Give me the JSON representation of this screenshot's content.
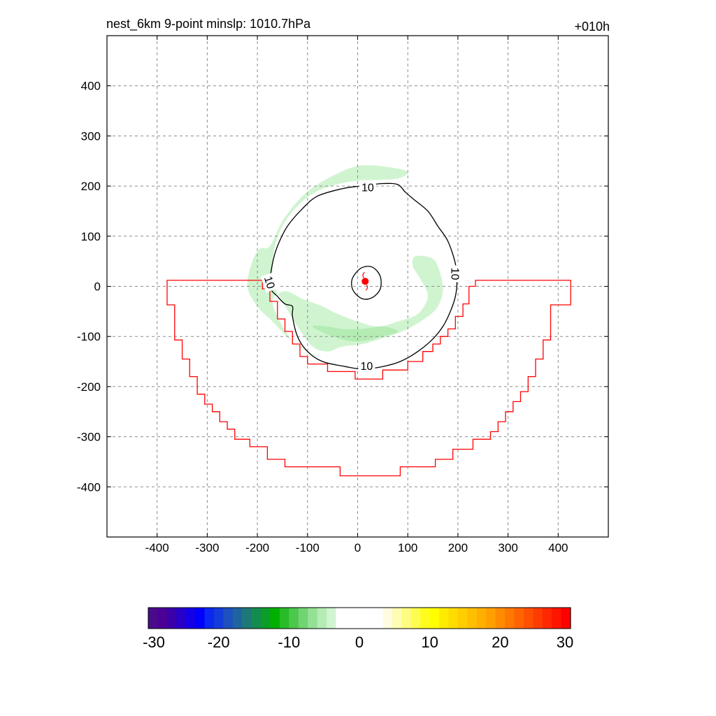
{
  "header": {
    "title": "nest_6km  9-point minslp: 1010.7hPa",
    "forecast_hour": "+010h"
  },
  "chart_data": {
    "type": "contour",
    "x_range": [
      -500,
      500
    ],
    "y_range": [
      -500,
      500
    ],
    "x_ticks": [
      -400,
      -300,
      -200,
      -100,
      0,
      100,
      200,
      300,
      400
    ],
    "y_ticks": [
      400,
      300,
      200,
      100,
      0,
      -100,
      -200,
      -300,
      -400
    ],
    "grid": true,
    "storm_center": {
      "x": 15,
      "y": 10,
      "color": "#ff0000"
    },
    "contour_label": "10",
    "contour_labels": [
      {
        "text": "10",
        "x": 20,
        "y": 198,
        "rotate": 0
      },
      {
        "text": "10",
        "x": 195,
        "y": 25,
        "rotate": 90
      },
      {
        "text": "10",
        "x": 18,
        "y": -158,
        "rotate": 0
      },
      {
        "text": "10",
        "x": -175,
        "y": 8,
        "rotate": 72
      }
    ],
    "contour_outer": [
      [
        -170,
        45
      ],
      [
        -160,
        80
      ],
      [
        -140,
        120
      ],
      [
        -110,
        155
      ],
      [
        -80,
        180
      ],
      [
        -30,
        195
      ],
      [
        5,
        200
      ],
      [
        50,
        205
      ],
      [
        80,
        203
      ],
      [
        95,
        188
      ],
      [
        110,
        175
      ],
      [
        140,
        150
      ],
      [
        160,
        120
      ],
      [
        180,
        90
      ],
      [
        195,
        45
      ],
      [
        198,
        10
      ],
      [
        195,
        -20
      ],
      [
        185,
        -50
      ],
      [
        170,
        -80
      ],
      [
        150,
        -105
      ],
      [
        120,
        -130
      ],
      [
        85,
        -150
      ],
      [
        50,
        -160
      ],
      [
        10,
        -165
      ],
      [
        -25,
        -160
      ],
      [
        -70,
        -150
      ],
      [
        -100,
        -130
      ],
      [
        -120,
        -100
      ],
      [
        -130,
        -60
      ],
      [
        -130,
        -40
      ],
      [
        -145,
        -35
      ],
      [
        -160,
        -20
      ],
      [
        -175,
        0
      ]
    ],
    "contour_inner": [
      [
        -5,
        25
      ],
      [
        10,
        38
      ],
      [
        30,
        38
      ],
      [
        45,
        20
      ],
      [
        45,
        -5
      ],
      [
        30,
        -22
      ],
      [
        10,
        -25
      ],
      [
        -8,
        -10
      ],
      [
        -12,
        10
      ]
    ],
    "positive_region": [
      [
        -380,
        12
      ],
      [
        -380,
        -37
      ],
      [
        -365,
        -37
      ],
      [
        -365,
        -107
      ],
      [
        -350,
        -107
      ],
      [
        -350,
        -145
      ],
      [
        -335,
        -145
      ],
      [
        -335,
        -180
      ],
      [
        -320,
        -180
      ],
      [
        -320,
        -215
      ],
      [
        -305,
        -215
      ],
      [
        -305,
        -235
      ],
      [
        -290,
        -235
      ],
      [
        -290,
        -250
      ],
      [
        -275,
        -250
      ],
      [
        -275,
        -270
      ],
      [
        -260,
        -270
      ],
      [
        -260,
        -285
      ],
      [
        -245,
        -285
      ],
      [
        -245,
        -305
      ],
      [
        -215,
        -305
      ],
      [
        -215,
        -320
      ],
      [
        -180,
        -320
      ],
      [
        -180,
        -345
      ],
      [
        -145,
        -345
      ],
      [
        -145,
        -360
      ],
      [
        -35,
        -360
      ],
      [
        -35,
        -378
      ],
      [
        85,
        -378
      ],
      [
        85,
        -360
      ],
      [
        155,
        -360
      ],
      [
        155,
        -345
      ],
      [
        190,
        -345
      ],
      [
        190,
        -325
      ],
      [
        230,
        -325
      ],
      [
        230,
        -305
      ],
      [
        265,
        -305
      ],
      [
        265,
        -290
      ],
      [
        280,
        -290
      ],
      [
        280,
        -270
      ],
      [
        295,
        -270
      ],
      [
        295,
        -250
      ],
      [
        310,
        -250
      ],
      [
        310,
        -230
      ],
      [
        325,
        -230
      ],
      [
        325,
        -210
      ],
      [
        340,
        -210
      ],
      [
        340,
        -180
      ],
      [
        355,
        -180
      ],
      [
        355,
        -145
      ],
      [
        370,
        -145
      ],
      [
        370,
        -107
      ],
      [
        385,
        -107
      ],
      [
        385,
        -37
      ],
      [
        425,
        -37
      ],
      [
        425,
        12
      ],
      [
        235,
        12
      ],
      [
        235,
        0
      ],
      [
        222,
        0
      ],
      [
        222,
        -35
      ],
      [
        210,
        -35
      ],
      [
        210,
        -60
      ],
      [
        195,
        -60
      ],
      [
        195,
        -85
      ],
      [
        180,
        -85
      ],
      [
        180,
        -100
      ],
      [
        165,
        -100
      ],
      [
        165,
        -115
      ],
      [
        150,
        -115
      ],
      [
        150,
        -130
      ],
      [
        130,
        -130
      ],
      [
        130,
        -150
      ],
      [
        100,
        -150
      ],
      [
        100,
        -167
      ],
      [
        50,
        -167
      ],
      [
        50,
        -185
      ],
      [
        -5,
        -185
      ],
      [
        -5,
        -170
      ],
      [
        -60,
        -170
      ],
      [
        -60,
        -155
      ],
      [
        -100,
        -155
      ],
      [
        -100,
        -140
      ],
      [
        -115,
        -140
      ],
      [
        -115,
        -115
      ],
      [
        -130,
        -115
      ],
      [
        -130,
        -90
      ],
      [
        -145,
        -90
      ],
      [
        -145,
        -65
      ],
      [
        -160,
        -65
      ],
      [
        -160,
        -30
      ],
      [
        -175,
        -30
      ],
      [
        -175,
        -5
      ],
      [
        -190,
        -5
      ],
      [
        -190,
        12
      ]
    ],
    "negative_band_outer": [
      [
        -175,
        80
      ],
      [
        -150,
        130
      ],
      [
        -110,
        180
      ],
      [
        -60,
        215
      ],
      [
        0,
        240
      ],
      [
        60,
        238
      ],
      [
        100,
        228
      ],
      [
        80,
        215
      ],
      [
        40,
        212
      ],
      [
        -20,
        208
      ],
      [
        -80,
        190
      ],
      [
        -120,
        160
      ],
      [
        -150,
        120
      ],
      [
        -165,
        80
      ],
      [
        -170,
        40
      ],
      [
        -165,
        0
      ],
      [
        -150,
        -30
      ],
      [
        -120,
        -80
      ],
      [
        -90,
        -120
      ],
      [
        -60,
        -130
      ],
      [
        -30,
        -120
      ],
      [
        10,
        -115
      ],
      [
        60,
        -100
      ],
      [
        100,
        -85
      ],
      [
        140,
        -60
      ],
      [
        160,
        -40
      ],
      [
        170,
        -10
      ],
      [
        165,
        25
      ],
      [
        150,
        55
      ],
      [
        115,
        60
      ],
      [
        110,
        40
      ],
      [
        125,
        15
      ],
      [
        140,
        -20
      ],
      [
        120,
        -55
      ],
      [
        80,
        -70
      ],
      [
        40,
        -80
      ],
      [
        0,
        -70
      ],
      [
        -40,
        -55
      ],
      [
        -70,
        -40
      ],
      [
        -110,
        -25
      ],
      [
        -140,
        -10
      ],
      [
        -160,
        -15
      ],
      [
        -170,
        -30
      ],
      [
        -160,
        -60
      ],
      [
        -130,
        -110
      ],
      [
        -100,
        -130
      ],
      [
        -80,
        -140
      ],
      [
        -130,
        -110
      ],
      [
        -170,
        -70
      ],
      [
        -200,
        -40
      ],
      [
        -220,
        0
      ],
      [
        -210,
        50
      ],
      [
        -195,
        75
      ]
    ],
    "negative_band_lower": [
      [
        -90,
        -80
      ],
      [
        -50,
        -100
      ],
      [
        0,
        -110
      ],
      [
        50,
        -100
      ],
      [
        80,
        -90
      ],
      [
        50,
        -80
      ],
      [
        10,
        -85
      ],
      [
        -30,
        -85
      ],
      [
        -60,
        -80
      ]
    ],
    "colorbar": {
      "range": [
        -30,
        30
      ],
      "tick_labels": [
        "-30",
        "-20",
        "-10",
        "0",
        "10",
        "20",
        "30"
      ],
      "colors": [
        "#4a0a8c",
        "#4b0096",
        "#3a00aa",
        "#2800c8",
        "#1400e6",
        "#0000ff",
        "#0a28f0",
        "#143cdc",
        "#1e50be",
        "#1e64a0",
        "#1e7878",
        "#148c50",
        "#0a9e28",
        "#00b000",
        "#28bc28",
        "#4cc84c",
        "#70d470",
        "#94e094",
        "#b4ecb4",
        "#d0f4d0",
        "#ffffff",
        "#ffffff",
        "#ffffff",
        "#ffffff",
        "#ffffff",
        "#fffce0",
        "#fffcb4",
        "#fffc82",
        "#fffc50",
        "#fffc1e",
        "#ffff00",
        "#ffeb00",
        "#ffdc00",
        "#ffcd00",
        "#ffbe00",
        "#ffaf00",
        "#ffa000",
        "#ff8c00",
        "#ff7800",
        "#ff6400",
        "#ff5000",
        "#ff3c00",
        "#ff2800",
        "#ff1400",
        "#ff0000"
      ]
    }
  }
}
